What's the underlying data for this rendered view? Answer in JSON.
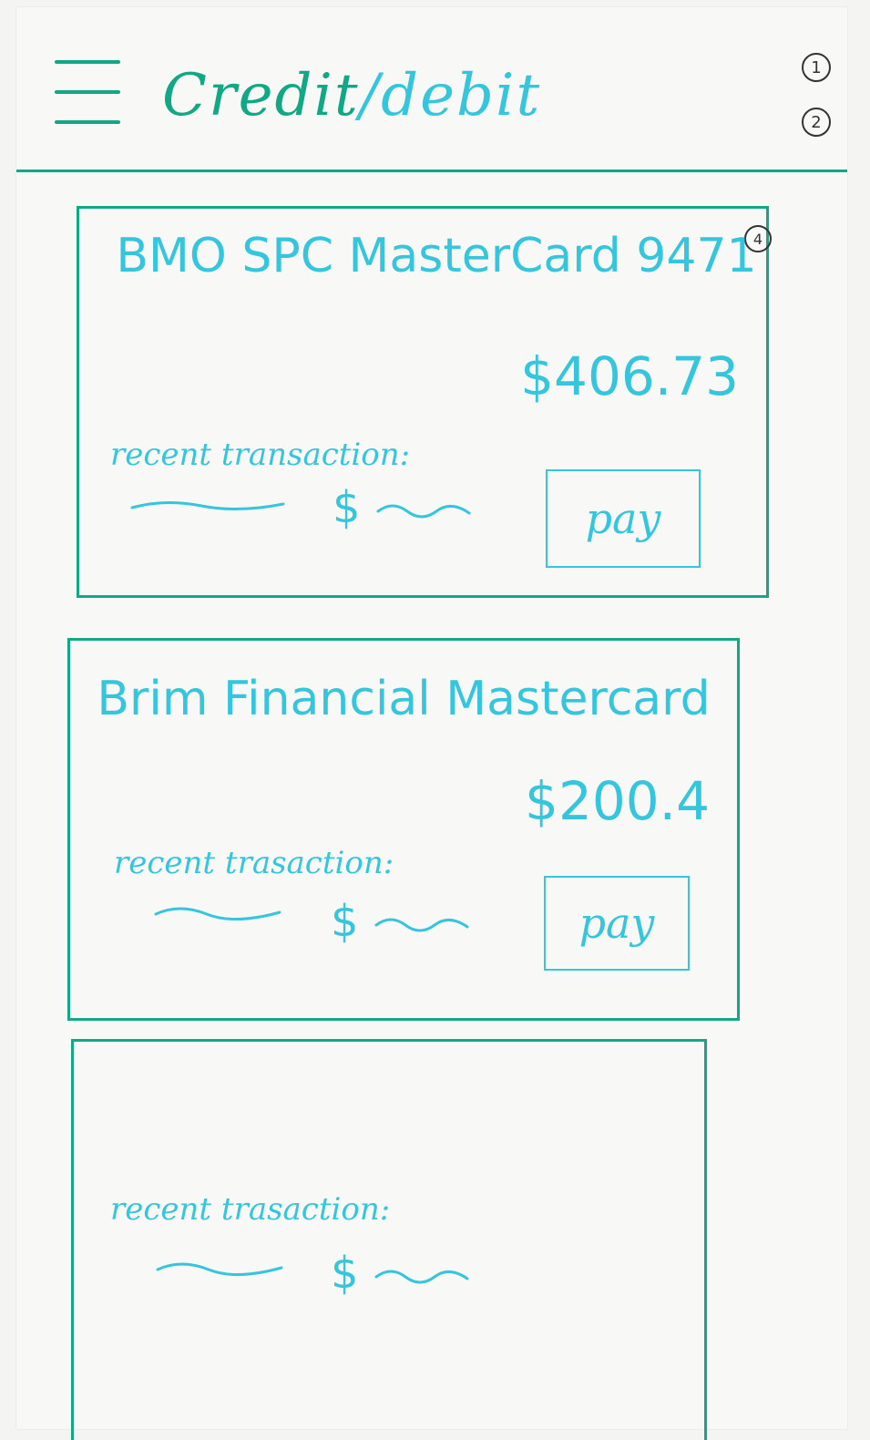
{
  "header": {
    "title_main": "Credit",
    "title_sep": "/",
    "title_sub": "debit",
    "markers": [
      "1",
      "2"
    ]
  },
  "cards": [
    {
      "name": "BMO SPC MasterCard 9471",
      "balance": "$406.73",
      "recent_label": "recent transaction:",
      "amount": "$",
      "pay_label": "pay",
      "marker": "4"
    },
    {
      "name": "Brim Financial Mastercard",
      "balance": "$200.4",
      "recent_label": "recent trasaction:",
      "amount": "$",
      "pay_label": "pay"
    },
    {
      "recent_label": "recent trasaction:",
      "amount": "$"
    }
  ],
  "colors": {
    "primary": "#11a886",
    "ink": "#35c5dc"
  },
  "icons": {
    "menu": "hamburger-icon"
  }
}
